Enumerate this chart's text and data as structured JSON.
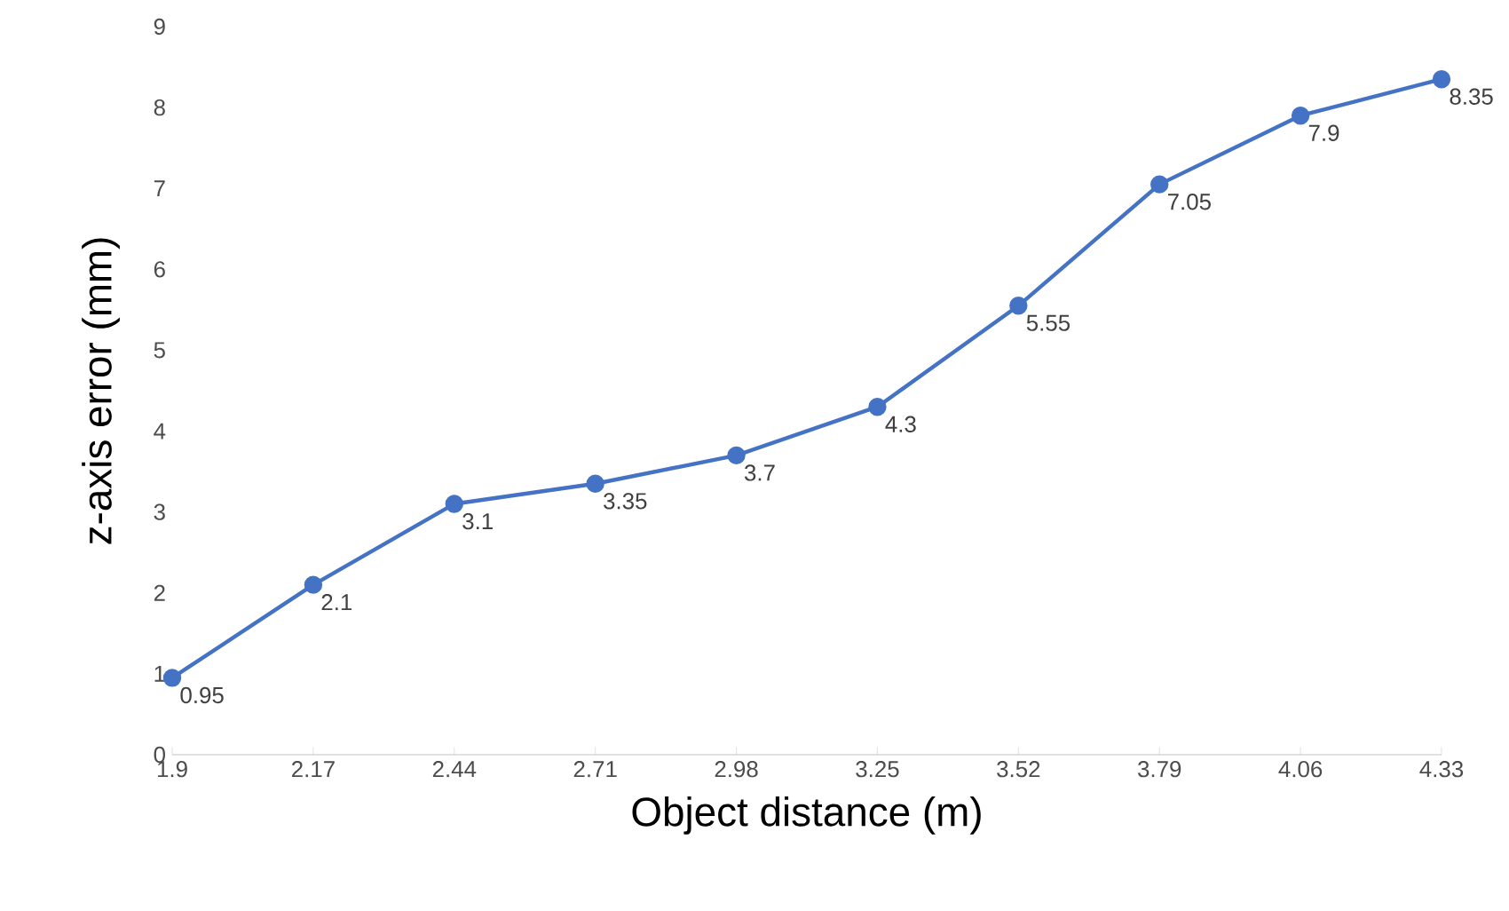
{
  "chart_data": {
    "type": "line",
    "xlabel": "Object distance (m)",
    "ylabel": "z-axis error (mm)",
    "categories": [
      "1.9",
      "2.17",
      "2.44",
      "2.71",
      "2.98",
      "3.25",
      "3.52",
      "3.79",
      "4.06",
      "4.33"
    ],
    "values": [
      0.95,
      2.1,
      3.1,
      3.35,
      3.7,
      4.3,
      5.55,
      7.05,
      7.9,
      8.35
    ],
    "color": "#4472c4",
    "marker": "circle",
    "line_style": "solid",
    "data_labels": true,
    "ylim": [
      0,
      9
    ],
    "yticks": [
      0,
      1,
      2,
      3,
      4,
      5,
      6,
      7,
      8,
      9
    ],
    "grid": false
  }
}
